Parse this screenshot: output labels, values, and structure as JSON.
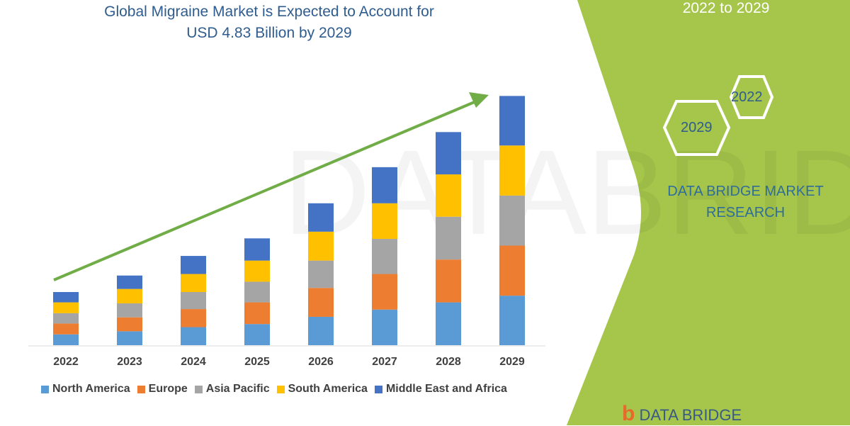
{
  "chart_data": {
    "type": "bar",
    "stacked": true,
    "title": "Global Migraine Market is Expected to Account for USD 4.83 Billion by 2029",
    "title_lines": [
      "Global Migraine Market is Expected to Account for",
      "USD 4.83 Billion by 2029"
    ],
    "xlabel": "",
    "ylabel": "",
    "units": "USD Billion (estimated)",
    "ylim": [
      0,
      5
    ],
    "grid": false,
    "legend_position": "bottom",
    "categories": [
      "2022",
      "2023",
      "2024",
      "2025",
      "2026",
      "2027",
      "2028",
      "2029"
    ],
    "series": [
      {
        "name": "North America",
        "color": "#5b9bd5",
        "values": [
          0.21,
          0.27,
          0.35,
          0.41,
          0.55,
          0.69,
          0.83,
          0.96
        ]
      },
      {
        "name": "Europe",
        "color": "#ed7d31",
        "values": [
          0.21,
          0.27,
          0.35,
          0.42,
          0.56,
          0.69,
          0.83,
          0.97
        ]
      },
      {
        "name": "Asia Pacific",
        "color": "#a5a5a5",
        "values": [
          0.2,
          0.27,
          0.33,
          0.4,
          0.53,
          0.68,
          0.83,
          0.97
        ]
      },
      {
        "name": "South America",
        "color": "#ffc000",
        "values": [
          0.21,
          0.28,
          0.35,
          0.41,
          0.56,
          0.69,
          0.82,
          0.97
        ]
      },
      {
        "name": "Middle East and Africa",
        "color": "#4472c4",
        "values": [
          0.2,
          0.26,
          0.35,
          0.43,
          0.55,
          0.7,
          0.82,
          0.96
        ]
      }
    ]
  },
  "side": {
    "period": "2022 to 2029",
    "hex_start": "2022",
    "hex_end": "2029",
    "brand": "DATA BRIDGE MARKET RESEARCH",
    "logo_text": "DATA BRIDGE"
  },
  "colors": {
    "panel": "#a5c54b",
    "arrow": "#70ad47",
    "title": "#2f5c8f"
  }
}
